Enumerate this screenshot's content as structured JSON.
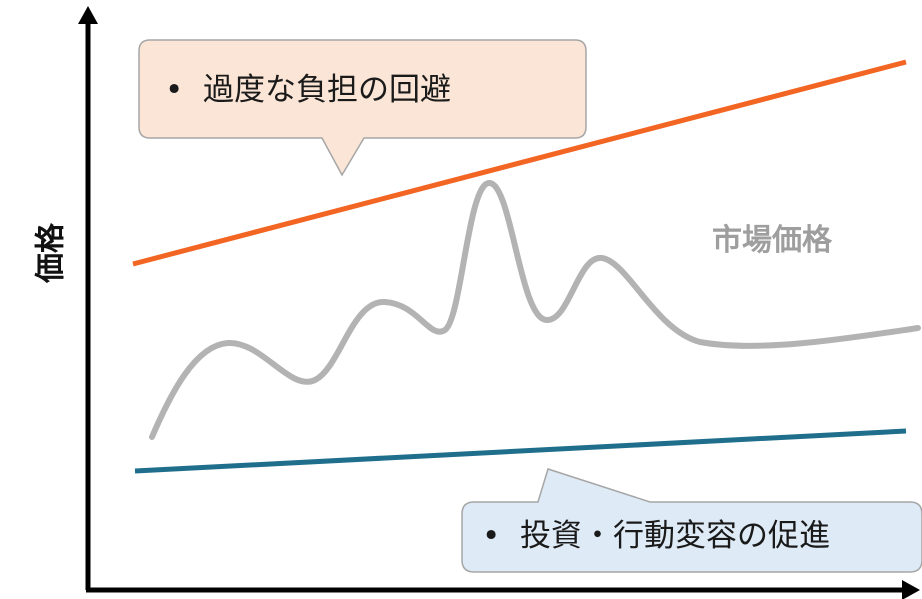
{
  "axis": {
    "y_label": "価格"
  },
  "lines": {
    "upper": {
      "color": "#f26522"
    },
    "market": {
      "label": "市場価格",
      "color": "#b3b3b3",
      "label_color": "#9e9e9e"
    },
    "lower": {
      "color": "#1f6e8c"
    }
  },
  "callouts": {
    "top": {
      "bullet": "•",
      "text": "過度な負担の回避",
      "fill": "#fbe5d6",
      "stroke": "#a6a6a6"
    },
    "bottom": {
      "bullet": "•",
      "text": "投資・行動変容の促進",
      "fill": "#deebf7",
      "stroke": "#a6a6a6"
    }
  }
}
